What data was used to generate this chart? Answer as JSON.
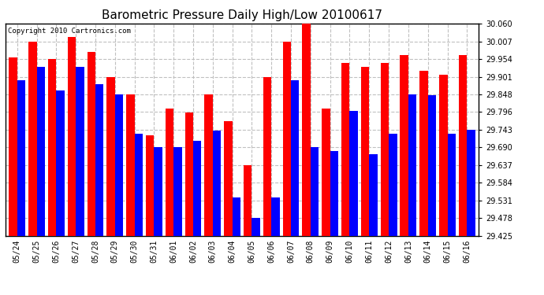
{
  "title": "Barometric Pressure Daily High/Low 20100617",
  "copyright": "Copyright 2010 Cartronics.com",
  "dates": [
    "05/24",
    "05/25",
    "05/26",
    "05/27",
    "05/28",
    "05/29",
    "05/30",
    "05/31",
    "06/01",
    "06/02",
    "06/03",
    "06/04",
    "06/05",
    "06/06",
    "06/07",
    "06/08",
    "06/09",
    "06/10",
    "06/11",
    "06/12",
    "06/13",
    "06/14",
    "06/15",
    "06/16"
  ],
  "highs": [
    29.96,
    30.007,
    29.954,
    30.02,
    29.975,
    29.901,
    29.848,
    29.727,
    29.807,
    29.795,
    29.848,
    29.769,
    29.637,
    29.901,
    30.007,
    30.06,
    29.807,
    29.942,
    29.93,
    29.942,
    29.966,
    29.919,
    29.907,
    29.966
  ],
  "lows": [
    29.89,
    29.93,
    29.86,
    29.93,
    29.88,
    29.848,
    29.73,
    29.69,
    29.69,
    29.71,
    29.74,
    29.54,
    29.478,
    29.54,
    29.89,
    29.69,
    29.68,
    29.8,
    29.67,
    29.73,
    29.848,
    29.845,
    29.73,
    29.743
  ],
  "bar_color_high": "#FF0000",
  "bar_color_low": "#0000FF",
  "background_color": "#FFFFFF",
  "plot_bg_color": "#FFFFFF",
  "grid_color": "#C0C0C0",
  "ylim_low": 29.425,
  "ylim_high": 30.06,
  "yticks": [
    29.425,
    29.478,
    29.531,
    29.584,
    29.637,
    29.69,
    29.743,
    29.796,
    29.848,
    29.901,
    29.954,
    30.007,
    30.06
  ],
  "title_fontsize": 11,
  "copyright_fontsize": 6.5,
  "tick_fontsize": 7
}
